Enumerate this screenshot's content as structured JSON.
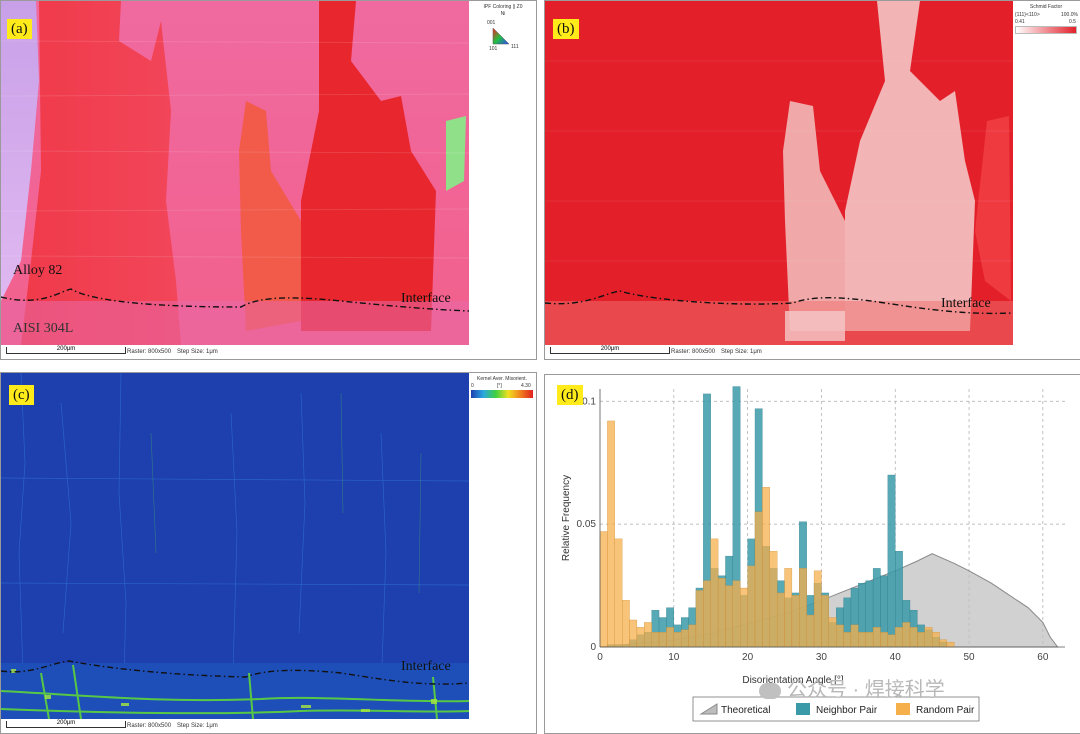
{
  "panels": {
    "a": {
      "label": "(a)",
      "top_label": "Alloy 82",
      "bottom_label": "AISI 304L",
      "interface": "Interface",
      "scale": "200μm",
      "raster": "Raster: 800x500",
      "step": "Step Size: 1μm",
      "legend_title": "IPF Coloring || Z0",
      "legend_sub": "Ni",
      "legend_c1": "001",
      "legend_c2": "101",
      "legend_c3": "111"
    },
    "b": {
      "label": "(b)",
      "interface": "Interface",
      "scale": "200μm",
      "raster": "Raster: 800x500",
      "step": "Step Size: 1μm",
      "legend_title": "Schmid Factor",
      "legend_sub": "{111}<110>",
      "legend_pct": "100.0%",
      "legend_min": "0.41",
      "legend_max": "0.5"
    },
    "c": {
      "label": "(c)",
      "interface": "Interface",
      "scale": "200μm",
      "raster": "Raster: 800x500",
      "step": "Step Size: 1μm",
      "legend_title": "Kernel Aver. Misorient.",
      "legend_min": "0",
      "legend_unit": "[°]",
      "legend_max": "4.30"
    },
    "d": {
      "label": "(d)"
    }
  },
  "watermark": "公众号 · 焊接科学",
  "colors": {
    "neighbor": "#3a9aa8",
    "random": "#f5b04c",
    "theoretical": "#bdbdbd"
  },
  "chart_data": {
    "type": "bar",
    "xlabel": "Disorientation Angle [°]",
    "ylabel": "Relative Frequency",
    "xlim": [
      0,
      63
    ],
    "ylim": [
      0,
      0.105
    ],
    "xticks": [
      0,
      10,
      20,
      30,
      40,
      50,
      60
    ],
    "yticks": [
      0,
      0.05,
      0.1
    ],
    "ytick_labels": [
      "0",
      "0.05",
      "0.1"
    ],
    "grid": true,
    "legend_position": "bottom",
    "bin_width": 1,
    "x": [
      0,
      1,
      2,
      3,
      4,
      5,
      6,
      7,
      8,
      9,
      10,
      11,
      12,
      13,
      14,
      15,
      16,
      17,
      18,
      19,
      20,
      21,
      22,
      23,
      24,
      25,
      26,
      27,
      28,
      29,
      30,
      31,
      32,
      33,
      34,
      35,
      36,
      37,
      38,
      39,
      40,
      41,
      42,
      43,
      44,
      45,
      46,
      47,
      48,
      49,
      50,
      51,
      52,
      53,
      54,
      55,
      56,
      57,
      58,
      59,
      60,
      61,
      62
    ],
    "series": [
      {
        "name": "Neighbor Pair",
        "values": [
          0.0,
          0.001,
          0.001,
          0.001,
          0.003,
          0.005,
          0.006,
          0.015,
          0.012,
          0.016,
          0.009,
          0.012,
          0.016,
          0.024,
          0.103,
          0.032,
          0.029,
          0.037,
          0.106,
          0.021,
          0.044,
          0.097,
          0.041,
          0.032,
          0.027,
          0.02,
          0.022,
          0.051,
          0.021,
          0.026,
          0.022,
          0.01,
          0.016,
          0.02,
          0.024,
          0.026,
          0.027,
          0.032,
          0.029,
          0.07,
          0.039,
          0.019,
          0.015,
          0.009,
          0.007,
          0.004,
          0.002,
          0.0,
          0.0,
          0.0,
          0.0,
          0.0,
          0.0,
          0.0,
          0.0,
          0.0,
          0.0,
          0.0,
          0.0,
          0.0,
          0.0,
          0.0,
          0.0
        ]
      },
      {
        "name": "Random Pair",
        "values": [
          0.047,
          0.092,
          0.044,
          0.019,
          0.011,
          0.008,
          0.01,
          0.006,
          0.006,
          0.008,
          0.006,
          0.007,
          0.009,
          0.023,
          0.027,
          0.044,
          0.028,
          0.025,
          0.027,
          0.024,
          0.033,
          0.055,
          0.065,
          0.039,
          0.022,
          0.032,
          0.021,
          0.032,
          0.013,
          0.031,
          0.021,
          0.012,
          0.009,
          0.006,
          0.009,
          0.006,
          0.006,
          0.008,
          0.006,
          0.005,
          0.008,
          0.01,
          0.008,
          0.006,
          0.008,
          0.006,
          0.003,
          0.002,
          0.0,
          0.0,
          0.0,
          0.0,
          0.0,
          0.0,
          0.0,
          0.0,
          0.0,
          0.0,
          0.0,
          0.0,
          0.0,
          0.0,
          0.0
        ]
      },
      {
        "name": "Theoretical",
        "x": [
          0,
          5,
          10,
          15,
          20,
          25,
          30,
          35,
          40,
          43,
          45,
          48,
          50,
          53,
          55,
          58,
          60,
          61,
          62
        ],
        "values": [
          0.0,
          0.0014,
          0.0028,
          0.0055,
          0.0095,
          0.0135,
          0.019,
          0.025,
          0.031,
          0.035,
          0.038,
          0.034,
          0.031,
          0.026,
          0.022,
          0.016,
          0.01,
          0.004,
          0.0
        ]
      }
    ]
  }
}
